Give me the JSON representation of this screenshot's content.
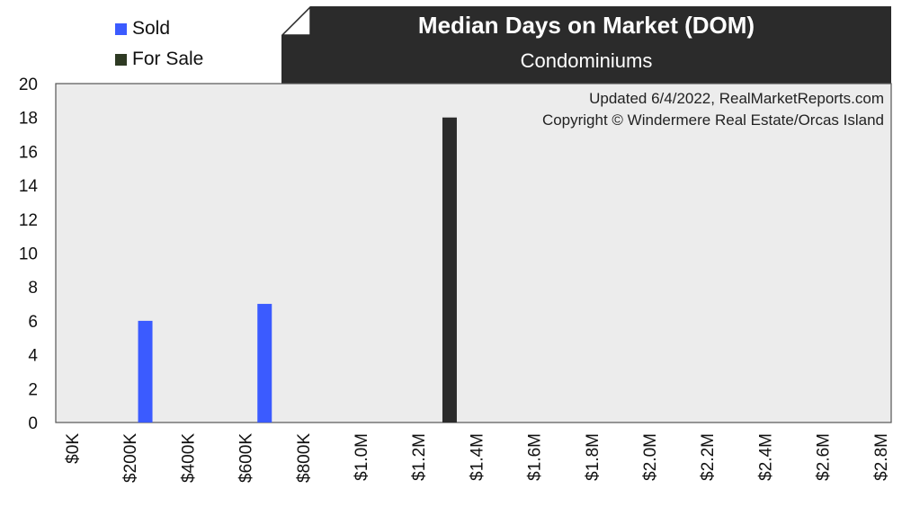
{
  "legend": {
    "items": [
      {
        "label": "Sold",
        "color": "#3b5bff"
      },
      {
        "label": "For Sale",
        "color": "#2e3a23"
      }
    ]
  },
  "header": {
    "title": "Median Days on Market (DOM)",
    "subtitle": "Condominiums"
  },
  "annotations": {
    "updated": "Updated 6/4/2022, RealMarketReports.com",
    "copyright": "Copyright © Windermere Real Estate/Orcas Island"
  },
  "chart_data": {
    "type": "bar",
    "title": "Median Days on Market (DOM)",
    "subtitle": "Condominiums",
    "xlabel": "",
    "ylabel": "",
    "ylim": [
      0,
      20
    ],
    "yticks": [
      0,
      2,
      4,
      6,
      8,
      10,
      12,
      14,
      16,
      18,
      20
    ],
    "xlim": [
      0,
      2800000
    ],
    "xtick_labels": [
      "$0K",
      "$200K",
      "$400K",
      "$600K",
      "$800K",
      "$1.0M",
      "$1.2M",
      "$1.4M",
      "$1.6M",
      "$1.8M",
      "$2.0M",
      "$2.2M",
      "$2.4M",
      "$2.6M",
      "$2.8M"
    ],
    "grid": false,
    "legend_position": "top-left",
    "series": [
      {
        "name": "Sold",
        "color": "#3b5bff",
        "points": [
          {
            "x": 300000,
            "y": 6
          },
          {
            "x": 700000,
            "y": 7
          }
        ]
      },
      {
        "name": "For Sale",
        "color": "#2b2b2b",
        "points": [
          {
            "x": 1320000,
            "y": 18
          }
        ]
      }
    ]
  }
}
